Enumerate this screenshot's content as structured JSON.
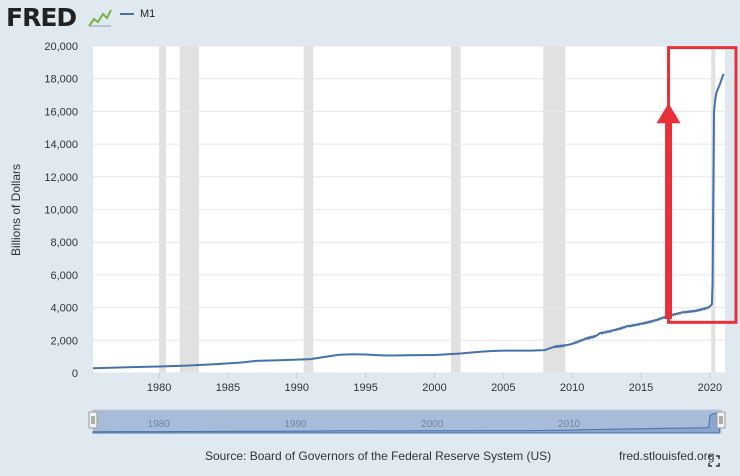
{
  "header": {
    "logo": "FRED",
    "legend_label": "M1"
  },
  "footer": {
    "source": "Source: Board of Governors of the Federal Reserve System (US)",
    "site": "fred.stlouisfed.org"
  },
  "icons": {
    "logo_graph": "line-graph-icon",
    "fullscreen": "fullscreen-icon",
    "nav_handle": "drag-handle-icon"
  },
  "colors": {
    "background": "#e1e9f0",
    "plot": "#ffffff",
    "series": "#4572a7",
    "recession": "#e1e1e1",
    "annotation": "#e8303a",
    "navigator_fill": "#a8bbd9"
  },
  "chart_data": {
    "type": "line",
    "ylabel": "Billions of Dollars",
    "xlim": [
      1975.2,
      2021.1
    ],
    "ylim": [
      0,
      20000
    ],
    "x_ticks": [
      1980,
      1985,
      1990,
      1995,
      2000,
      2005,
      2010,
      2015,
      2020
    ],
    "y_ticks": [
      0,
      2000,
      4000,
      6000,
      8000,
      10000,
      12000,
      14000,
      16000,
      18000,
      20000
    ],
    "grid": true,
    "legend": "top-left",
    "recessions": [
      [
        1980.0,
        1980.5
      ],
      [
        1981.5,
        1982.9
      ],
      [
        1990.5,
        1991.2
      ],
      [
        2001.2,
        2001.9
      ],
      [
        2007.9,
        2009.5
      ],
      [
        2020.1,
        2020.4
      ]
    ],
    "series": [
      {
        "name": "M1",
        "x": [
          1975.2,
          1978,
          1980,
          1982,
          1984,
          1986,
          1987,
          1989,
          1991,
          1992,
          1993,
          1994,
          1995,
          1996,
          1997,
          1998,
          2000,
          2001,
          2002,
          2003,
          2004,
          2005,
          2006,
          2007,
          2008,
          2008.7,
          2009.5,
          2010,
          2011,
          2011.7,
          2012,
          2013,
          2014,
          2015,
          2016,
          2017,
          2018,
          2019,
          2019.9,
          2020.15,
          2020.2,
          2020.3,
          2020.4,
          2020.5,
          2020.7,
          2021.0
        ],
        "y": [
          290,
          360,
          400,
          450,
          540,
          640,
          740,
          790,
          850,
          980,
          1110,
          1150,
          1130,
          1080,
          1070,
          1090,
          1100,
          1150,
          1200,
          1280,
          1340,
          1370,
          1370,
          1370,
          1400,
          1600,
          1680,
          1780,
          2100,
          2250,
          2420,
          2600,
          2850,
          3000,
          3200,
          3500,
          3700,
          3800,
          4000,
          4200,
          5500,
          16000,
          16800,
          17200,
          17600,
          18300
        ]
      }
    ],
    "annotations": [
      {
        "type": "arrow",
        "x": 2017.0,
        "y_from": 3300,
        "y_to": 16500
      },
      {
        "type": "box",
        "x_range": [
          2017.0,
          2021.9
        ],
        "y_range": [
          3100,
          19900
        ]
      }
    ],
    "navigator": {
      "ticks": [
        1980,
        1990,
        2000,
        2010
      ]
    }
  }
}
